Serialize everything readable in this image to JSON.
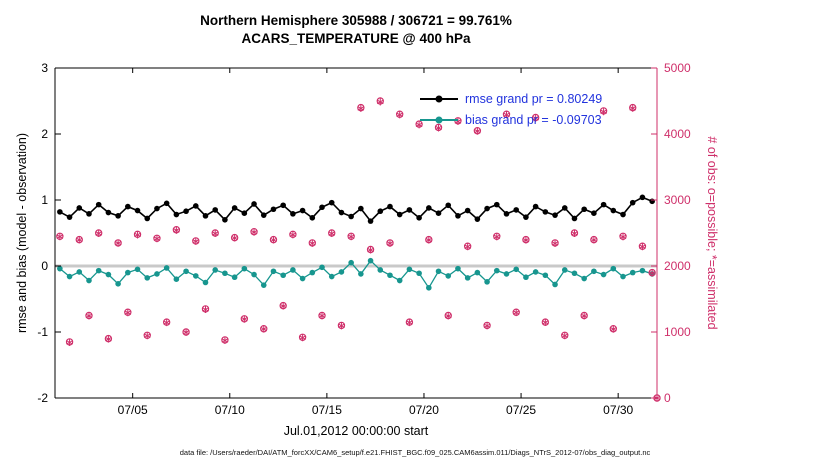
{
  "title": {
    "line1": "Northern Hemisphere 305988 / 306721 = 99.761%",
    "line2": "ACARS_TEMPERATURE @ 400 hPa"
  },
  "axes": {
    "left": {
      "label": "rmse and bias (model - observation)",
      "ticks": [
        3,
        2,
        1,
        0,
        -1,
        -2
      ],
      "range": [
        -2,
        3
      ],
      "color": "#000000"
    },
    "right": {
      "label": "# of obs: o=possible; *=assimilated",
      "ticks": [
        0,
        1000,
        2000,
        3000,
        4000,
        5000
      ],
      "range": [
        0,
        5000
      ],
      "color": "#cf2f6a"
    },
    "x": {
      "label": "Jul.01,2012 00:00:00 start",
      "ticks": [
        5,
        10,
        15,
        20,
        25,
        30
      ],
      "tick_labels": [
        "07/05",
        "07/10",
        "07/15",
        "07/20",
        "07/25",
        "07/30"
      ],
      "range": [
        1,
        32
      ]
    }
  },
  "legend": [
    {
      "label": "rmse grand pr = 0.80249",
      "color": "#000000",
      "text_color": "#2233dd"
    },
    {
      "label": "bias grand pr = -0.09703",
      "color": "#17968f",
      "text_color": "#2233dd"
    }
  ],
  "caption": "data file: /Users/raeder/DAI/ATM_forcXX/CAM6_setup/f.e21.FHIST_BGC.f09_025.CAM6assim.011/Diags_NTrS_2012-07/obs_diag_output.nc",
  "chart_data": {
    "type": "line+scatter",
    "title": "Northern Hemisphere 305988 / 306721 = 99.761% — ACARS_TEMPERATURE @ 400 hPa",
    "xlabel": "Jul.01,2012 00:00:00 start",
    "ylabel_left": "rmse and bias (model - observation)",
    "ylabel_right": "# of obs: o=possible; *=assimilated",
    "xlim": [
      1,
      32
    ],
    "ylim_left": [
      -2,
      3
    ],
    "ylim_right": [
      0,
      5000
    ],
    "grid": false,
    "legend_position": "top-center-inside",
    "zero_line": {
      "y": 0,
      "color": "#c9c9c9"
    },
    "x": [
      1.25,
      1.75,
      2.25,
      2.75,
      3.25,
      3.75,
      4.25,
      4.75,
      5.25,
      5.75,
      6.25,
      6.75,
      7.25,
      7.75,
      8.25,
      8.75,
      9.25,
      9.75,
      10.25,
      10.75,
      11.25,
      11.75,
      12.25,
      12.75,
      13.25,
      13.75,
      14.25,
      14.75,
      15.25,
      15.75,
      16.25,
      16.75,
      17.25,
      17.75,
      18.25,
      18.75,
      19.25,
      19.75,
      20.25,
      20.75,
      21.25,
      21.75,
      22.25,
      22.75,
      23.25,
      23.75,
      24.25,
      24.75,
      25.25,
      25.75,
      26.25,
      26.75,
      27.25,
      27.75,
      28.25,
      28.75,
      29.25,
      29.75,
      30.25,
      30.75,
      31.25,
      31.75
    ],
    "series": [
      {
        "name": "rmse",
        "axis": "left",
        "line": true,
        "marker": "dot",
        "color": "#000000",
        "y": [
          0.82,
          0.74,
          0.88,
          0.79,
          0.93,
          0.81,
          0.76,
          0.9,
          0.84,
          0.72,
          0.87,
          0.95,
          0.78,
          0.83,
          0.91,
          0.76,
          0.85,
          0.7,
          0.88,
          0.8,
          0.94,
          0.77,
          0.86,
          0.92,
          0.79,
          0.84,
          0.73,
          0.89,
          0.96,
          0.81,
          0.75,
          0.87,
          0.68,
          0.83,
          0.9,
          0.78,
          0.85,
          0.73,
          0.88,
          0.8,
          0.92,
          0.76,
          0.84,
          0.71,
          0.87,
          0.93,
          0.79,
          0.85,
          0.74,
          0.9,
          0.82,
          0.77,
          0.88,
          0.72,
          0.86,
          0.8,
          0.93,
          0.84,
          0.78,
          0.96,
          1.04,
          0.98
        ]
      },
      {
        "name": "bias",
        "axis": "left",
        "line": true,
        "marker": "dot",
        "color": "#17968f",
        "y": [
          -0.04,
          -0.16,
          -0.09,
          -0.22,
          -0.07,
          -0.13,
          -0.27,
          -0.1,
          -0.05,
          -0.18,
          -0.12,
          -0.03,
          -0.2,
          -0.08,
          -0.15,
          -0.25,
          -0.06,
          -0.11,
          -0.17,
          -0.04,
          -0.13,
          -0.29,
          -0.08,
          -0.14,
          -0.06,
          -0.19,
          -0.1,
          -0.02,
          -0.16,
          -0.09,
          0.05,
          -0.12,
          0.08,
          -0.06,
          -0.14,
          -0.22,
          -0.05,
          -0.11,
          -0.33,
          -0.08,
          -0.15,
          -0.04,
          -0.18,
          -0.1,
          -0.24,
          -0.07,
          -0.12,
          -0.05,
          -0.17,
          -0.09,
          -0.14,
          -0.28,
          -0.06,
          -0.11,
          -0.19,
          -0.08,
          -0.13,
          -0.04,
          -0.16,
          -0.1,
          -0.07,
          -0.12
        ]
      },
      {
        "name": "possible",
        "axis": "right",
        "line": false,
        "marker": "open-circle",
        "color": "#cf2f6a",
        "x": [
          1.25,
          1.75,
          2.25,
          2.75,
          3.25,
          3.75,
          4.25,
          4.75,
          5.25,
          5.75,
          6.25,
          6.75,
          7.25,
          7.75,
          8.25,
          8.75,
          9.25,
          9.75,
          10.25,
          10.75,
          11.25,
          11.75,
          12.25,
          12.75,
          13.25,
          13.75,
          14.25,
          14.75,
          15.25,
          15.75,
          16.25,
          16.75,
          17.25,
          17.75,
          18.25,
          18.75,
          19.25,
          19.75,
          20.25,
          20.75,
          21.25,
          21.75,
          22.25,
          22.75,
          23.25,
          23.75,
          24.25,
          24.75,
          25.25,
          25.75,
          26.25,
          26.75,
          27.25,
          27.75,
          28.25,
          28.75,
          29.25,
          29.75,
          30.25,
          30.75,
          31.25,
          31.75,
          32.0
        ],
        "y": [
          2450,
          850,
          2400,
          1250,
          2500,
          900,
          2350,
          1300,
          2480,
          950,
          2420,
          1150,
          2550,
          1000,
          2380,
          1350,
          2500,
          880,
          2430,
          1200,
          2520,
          1050,
          2400,
          1400,
          2480,
          920,
          2350,
          1250,
          2500,
          1100,
          2450,
          4400,
          2250,
          4500,
          2350,
          4300,
          1150,
          4150,
          2400,
          4100,
          1250,
          4200,
          2300,
          4050,
          1100,
          2450,
          4300,
          1300,
          2400,
          4250,
          1150,
          2350,
          950,
          2500,
          1250,
          2400,
          4350,
          1050,
          2450,
          4400,
          2300,
          1900,
          0
        ]
      },
      {
        "name": "assimilated",
        "axis": "right",
        "line": false,
        "marker": "asterisk",
        "color": "#cf2f6a",
        "x": [
          1.25,
          1.75,
          2.25,
          2.75,
          3.25,
          3.75,
          4.25,
          4.75,
          5.25,
          5.75,
          6.25,
          6.75,
          7.25,
          7.75,
          8.25,
          8.75,
          9.25,
          9.75,
          10.25,
          10.75,
          11.25,
          11.75,
          12.25,
          12.75,
          13.25,
          13.75,
          14.25,
          14.75,
          15.25,
          15.75,
          16.25,
          16.75,
          17.25,
          17.75,
          18.25,
          18.75,
          19.25,
          19.75,
          20.25,
          20.75,
          21.25,
          21.75,
          22.25,
          22.75,
          23.25,
          23.75,
          24.25,
          24.75,
          25.25,
          25.75,
          26.25,
          26.75,
          27.25,
          27.75,
          28.25,
          28.75,
          29.25,
          29.75,
          30.25,
          30.75,
          31.25,
          31.75,
          32.0
        ],
        "y": [
          2445,
          842,
          2396,
          1244,
          2494,
          893,
          2346,
          1294,
          2472,
          944,
          2415,
          1143,
          2542,
          996,
          2374,
          1342,
          2493,
          872,
          2425,
          1195,
          2513,
          1046,
          2395,
          1393,
          2474,
          915,
          2344,
          1246,
          2493,
          1095,
          2444,
          4388,
          2243,
          4487,
          2344,
          4291,
          1144,
          4140,
          2394,
          4092,
          1243,
          4190,
          2294,
          4043,
          1094,
          2443,
          4292,
          1295,
          2393,
          4241,
          1146,
          2342,
          944,
          2494,
          1244,
          2395,
          4338,
          1044,
          2442,
          4390,
          2294,
          1893,
          0
        ]
      }
    ]
  }
}
